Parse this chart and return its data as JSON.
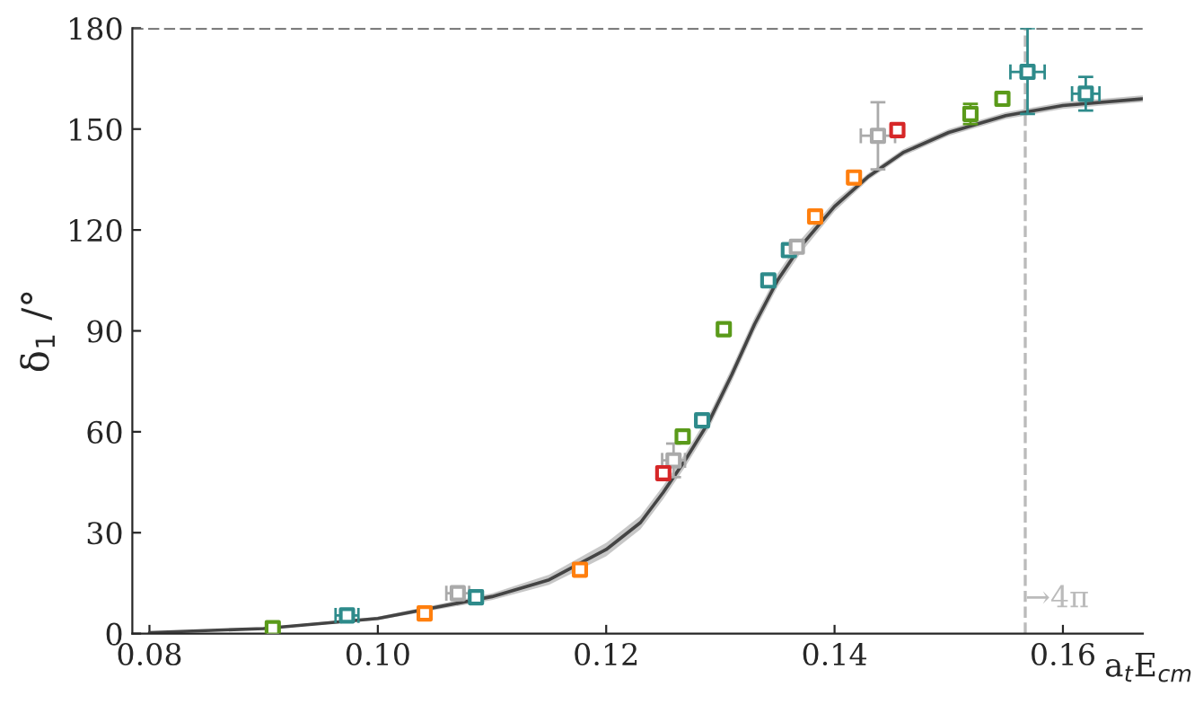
{
  "chart_data": {
    "type": "scatter",
    "xlabel": "a$_{t}$E$_{cm}$",
    "ylabel": "δ$_{1}$ /°",
    "xlim": [
      0.0785,
      0.167
    ],
    "ylim": [
      0,
      180
    ],
    "xticks": [
      {
        "value": 0.08,
        "label": "0.08"
      },
      {
        "value": 0.1,
        "label": "0.10"
      },
      {
        "value": 0.12,
        "label": "0.12"
      },
      {
        "value": 0.14,
        "label": "0.14"
      },
      {
        "value": 0.16,
        "label": "0.16"
      }
    ],
    "yticks": [
      0,
      30,
      60,
      90,
      120,
      150,
      180
    ],
    "grid": false,
    "legend": false,
    "series": [
      {
        "type": "line",
        "color": "#444444",
        "x": [
          0.08,
          0.09,
          0.1,
          0.11,
          0.115,
          0.12,
          0.123,
          0.125,
          0.127,
          0.129,
          0.131,
          0.133,
          0.135,
          0.137,
          0.14,
          0.143,
          0.146,
          0.15,
          0.155,
          0.16,
          0.167
        ],
        "values": [
          0.3,
          1.5,
          4.5,
          11,
          16,
          25,
          33,
          42,
          52,
          63,
          77,
          92,
          105,
          115,
          127,
          136,
          143,
          149,
          154,
          157,
          159
        ],
        "lower": [
          0.2,
          1.2,
          4,
          10,
          14.5,
          23,
          31,
          40,
          50,
          61,
          75,
          90,
          103,
          113,
          125.5,
          135,
          142,
          148,
          153,
          156,
          158
        ],
        "upper": [
          0.4,
          1.8,
          5,
          12,
          17.5,
          27,
          35,
          44,
          54,
          65,
          79,
          94,
          107,
          117,
          128.5,
          137,
          144,
          150,
          155,
          158,
          160
        ]
      },
      {
        "marker": "square",
        "color": "#5a9a1a",
        "x": [
          0.0908,
          0.1267,
          0.1303,
          0.1519,
          0.1547
        ],
        "values": [
          1.6,
          58.6,
          90.5,
          154.5,
          159
        ],
        "errors": [
          null,
          null,
          null,
          3,
          null
        ]
      },
      {
        "marker": "square",
        "color": "#2e8b8b",
        "x": [
          0.0973,
          0.1086,
          0.1284,
          0.1342,
          0.136,
          0.1569,
          0.162
        ],
        "values": [
          5.4,
          10.8,
          63.4,
          105,
          114,
          167,
          160.5
        ],
        "errors": [
          null,
          null,
          null,
          null,
          null,
          [
            154.5,
            180
          ],
          5
        ],
        "xerrors": [
          0.001,
          null,
          null,
          null,
          null,
          0.0015,
          0.0012
        ]
      },
      {
        "marker": "square",
        "color": "#ff7f0e",
        "x": [
          0.1041,
          0.1177,
          0.1383,
          0.1417
        ],
        "values": [
          6,
          19,
          124,
          135.6
        ]
      },
      {
        "marker": "square",
        "color": "#aaaaaa",
        "x": [
          0.107,
          0.1259,
          0.1367,
          0.1438
        ],
        "values": [
          12,
          51.5,
          115,
          148
        ],
        "errors": [
          null,
          5,
          null,
          10
        ],
        "xerrors": [
          0.001,
          0.001,
          null,
          0.0015
        ]
      },
      {
        "marker": "square",
        "color": "#d62728",
        "x": [
          0.125,
          0.1455
        ],
        "values": [
          47.7,
          149.7
        ]
      }
    ],
    "ref_lines": [
      {
        "axis": "y",
        "value": 180,
        "color": "#666666",
        "line_style": "dashed"
      },
      {
        "axis": "x",
        "value": 0.1567,
        "label": "→4π",
        "color": "#bbbbbb",
        "line_style": "dashed"
      }
    ]
  }
}
